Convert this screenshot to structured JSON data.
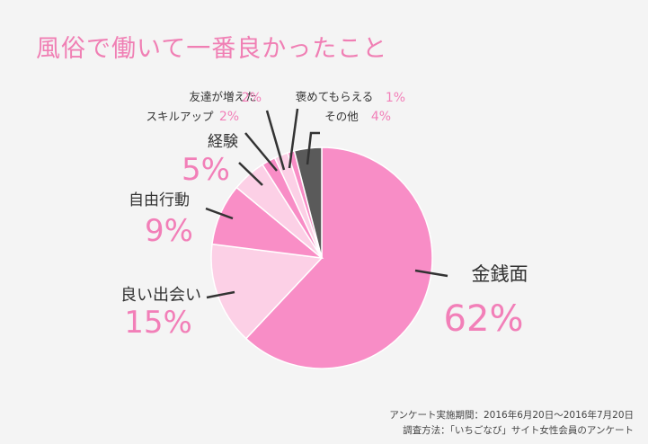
{
  "title": "風俗で働いて一番良かったこと",
  "chart_data": {
    "type": "pie",
    "title": "風俗で働いて一番良かったこと",
    "slices": [
      {
        "label": "金銭面",
        "value": 62,
        "value_label": "62%",
        "color": "#f88dc6"
      },
      {
        "label": "良い出会い",
        "value": 15,
        "value_label": "15%",
        "color": "#fcd0e6"
      },
      {
        "label": "自由行動",
        "value": 9,
        "value_label": "9%",
        "color": "#f98ec6"
      },
      {
        "label": "経験",
        "value": 5,
        "value_label": "5%",
        "color": "#fcd0e6"
      },
      {
        "label": "友達が増えた",
        "value": 2,
        "value_label": "2%",
        "color": "#f88dc6"
      },
      {
        "label": "スキルアップ",
        "value": 2,
        "value_label": "2%",
        "color": "#fcd0e6"
      },
      {
        "label": "褒めてもらえる",
        "value": 1,
        "value_label": "1%",
        "color": "#f88dc6"
      },
      {
        "label": "その他",
        "value": 4,
        "value_label": "4%",
        "color": "#5a5a5a"
      }
    ],
    "order": "clockwise from top",
    "label_color": "#333333",
    "value_color": "#f27fb8"
  },
  "footnotes": {
    "period": "アンケート実施期間：2016年6月20日〜2016年7月20日",
    "method": "調査方法：「いちごなび」サイト女性会員のアンケート"
  }
}
